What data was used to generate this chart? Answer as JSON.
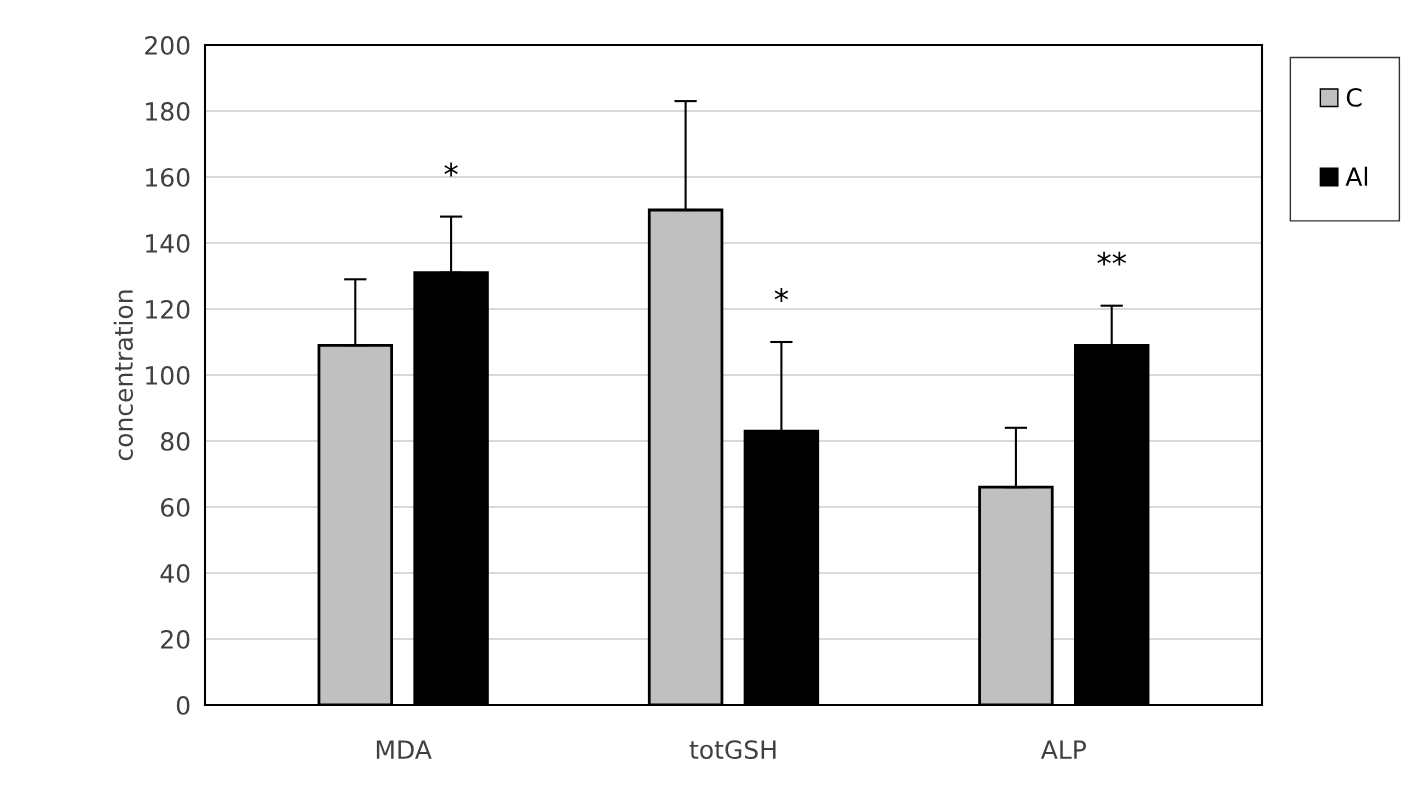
{
  "chart_data": {
    "type": "bar",
    "ylabel": "concentration",
    "categories": [
      "MDA",
      "totGSH",
      "ALP"
    ],
    "series": [
      {
        "name": "C",
        "color": "#c0c0c0",
        "values": [
          109,
          150,
          66
        ],
        "errors": [
          [
            109,
            129
          ],
          [
            150,
            183
          ],
          [
            66,
            84
          ]
        ]
      },
      {
        "name": "Al",
        "color": "#000000",
        "values": [
          131,
          83,
          109
        ],
        "errors": [
          [
            131,
            148
          ],
          [
            83,
            110
          ],
          [
            109,
            121
          ]
        ]
      }
    ],
    "annotations": [
      "*",
      "*",
      "**"
    ],
    "ylim": [
      0,
      200
    ],
    "yticks": [
      0,
      20,
      40,
      60,
      80,
      100,
      120,
      140,
      160,
      180,
      200
    ],
    "grid": "y",
    "legend": "top right"
  }
}
